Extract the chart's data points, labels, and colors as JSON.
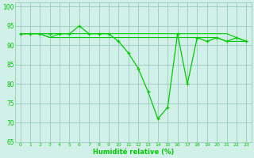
{
  "x": [
    0,
    1,
    2,
    3,
    4,
    5,
    6,
    7,
    8,
    9,
    10,
    11,
    12,
    13,
    14,
    15,
    16,
    17,
    18,
    19,
    20,
    21,
    22,
    23
  ],
  "y_main": [
    93,
    93,
    93,
    93,
    93,
    93,
    95,
    93,
    93,
    93,
    91,
    88,
    84,
    78,
    71,
    74,
    93,
    80,
    92,
    91,
    92,
    91,
    92,
    91
  ],
  "y_flat1": [
    93,
    93,
    93,
    92,
    93,
    93,
    93,
    93,
    93,
    93,
    93,
    93,
    93,
    93,
    93,
    93,
    93,
    93,
    93,
    93,
    93,
    93,
    92,
    91
  ],
  "y_flat2": [
    93,
    93,
    93,
    92,
    92,
    92,
    92,
    92,
    92,
    92,
    92,
    92,
    92,
    92,
    92,
    92,
    92,
    92,
    92,
    92,
    92,
    91,
    91,
    91
  ],
  "line_color": "#00cc00",
  "bg_color": "#d0f0e8",
  "grid_color": "#99ccbb",
  "xlabel": "Humidité relative (%)",
  "ylim": [
    65,
    101
  ],
  "xlim": [
    -0.5,
    23.5
  ],
  "yticks": [
    65,
    70,
    75,
    80,
    85,
    90,
    95,
    100
  ],
  "xticks": [
    0,
    1,
    2,
    3,
    4,
    5,
    6,
    7,
    8,
    9,
    10,
    11,
    12,
    13,
    14,
    15,
    16,
    17,
    18,
    19,
    20,
    21,
    22,
    23
  ]
}
